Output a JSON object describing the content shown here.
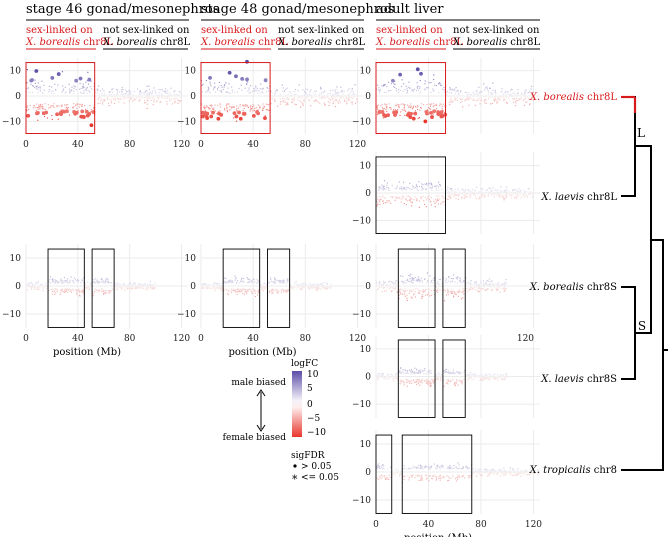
{
  "headers": {
    "stage46": "stage 46 gonad/mesonephros",
    "stage48": "stage 48 gonad/mesonephros",
    "liver": "adult liver"
  },
  "subheaders": {
    "sex_linked_line1": "sex-linked on",
    "sex_linked_line2_species": "X. borealis",
    "sex_linked_line2_chr": " chr8L",
    "not_sex_linked_line1": "not sex-linked on",
    "not_sex_linked_line2_species": "X. borealis",
    "not_sex_linked_line2_chr": " chr8L"
  },
  "axis": {
    "xlabel": "position (Mb)",
    "xticks": [
      "0",
      "40",
      "80",
      "120"
    ],
    "xtick_values": [
      0,
      40,
      80,
      120
    ],
    "yticks": [
      "10",
      "0",
      "−10"
    ],
    "ytick_values": [
      10,
      0,
      -10
    ]
  },
  "legend": {
    "title": "logFC",
    "ticks": [
      "10",
      "5",
      "0",
      "−5",
      "−10"
    ],
    "male_biased": "male biased",
    "female_biased": "female biased",
    "sig_title": "sigFDR",
    "sig_gt": "> 0.05",
    "sig_le": "<= 0.05"
  },
  "tree": {
    "labels": [
      {
        "species": "X. borealis",
        "chr": " chr8L",
        "highlight": true
      },
      {
        "species": "X. laevis",
        "chr": " chr8L",
        "highlight": false
      },
      {
        "species": "X. borealis",
        "chr": " chr8S",
        "highlight": false
      },
      {
        "species": "X. laevis",
        "chr": " chr8S",
        "highlight": false
      },
      {
        "species": "X. tropicalis",
        "chr": " chr8",
        "highlight": false
      }
    ],
    "node_L": "L",
    "node_S": "S"
  },
  "colors": {
    "male": "#5b4ea8",
    "female": "#e8352b",
    "highlight": "#d7191c",
    "box": "#000000",
    "grid": "#ebebeb"
  },
  "chart_data": {
    "type": "scatter",
    "xlim": [
      0,
      125
    ],
    "ylim": [
      -15,
      15
    ],
    "panels": [
      {
        "id": "s46-borealis8L",
        "row": "borealis8L",
        "col": "stage46",
        "chrom_length": 120,
        "sexlinked_region": [
          0,
          53
        ],
        "boxes": [],
        "pattern": "strong"
      },
      {
        "id": "s48-borealis8L",
        "row": "borealis8L",
        "col": "stage48",
        "chrom_length": 120,
        "sexlinked_region": [
          0,
          53
        ],
        "boxes": [],
        "pattern": "strong"
      },
      {
        "id": "liver-borealis8L",
        "row": "borealis8L",
        "col": "liver",
        "chrom_length": 120,
        "sexlinked_region": [
          0,
          53
        ],
        "boxes": [],
        "pattern": "strong"
      },
      {
        "id": "liver-laevis8L",
        "row": "laevis8L",
        "col": "liver",
        "chrom_length": 120,
        "sexlinked_region": null,
        "boxes": [
          [
            0,
            53
          ]
        ],
        "pattern": "moderate"
      },
      {
        "id": "s46-borealis8S",
        "row": "borealis8S",
        "col": "stage46",
        "chrom_length": 100,
        "sexlinked_region": null,
        "boxes": [
          [
            17,
            45
          ],
          [
            51,
            68
          ]
        ],
        "pattern": "weak"
      },
      {
        "id": "s48-borealis8S",
        "row": "borealis8S",
        "col": "stage48",
        "chrom_length": 100,
        "sexlinked_region": null,
        "boxes": [
          [
            17,
            45
          ],
          [
            51,
            68
          ]
        ],
        "pattern": "weak"
      },
      {
        "id": "liver-borealis8S",
        "row": "borealis8S",
        "col": "liver",
        "chrom_length": 100,
        "sexlinked_region": null,
        "boxes": [
          [
            17,
            45
          ],
          [
            51,
            68
          ]
        ],
        "pattern": "moderate"
      },
      {
        "id": "liver-laevis8S",
        "row": "laevis8S",
        "col": "liver",
        "chrom_length": 100,
        "sexlinked_region": null,
        "boxes": [
          [
            17,
            45
          ],
          [
            51,
            68
          ]
        ],
        "pattern": "weak"
      },
      {
        "id": "liver-tropicalis8",
        "row": "tropicalis8",
        "col": "liver",
        "chrom_length": 125,
        "sexlinked_region": null,
        "boxes": [
          [
            0,
            12
          ],
          [
            20,
            73
          ]
        ],
        "pattern": "weak"
      }
    ],
    "color_scale": {
      "min": -10,
      "max": 10,
      "low": "#e8352b",
      "mid": "#f7f7f7",
      "high": "#5b4ea8"
    }
  }
}
